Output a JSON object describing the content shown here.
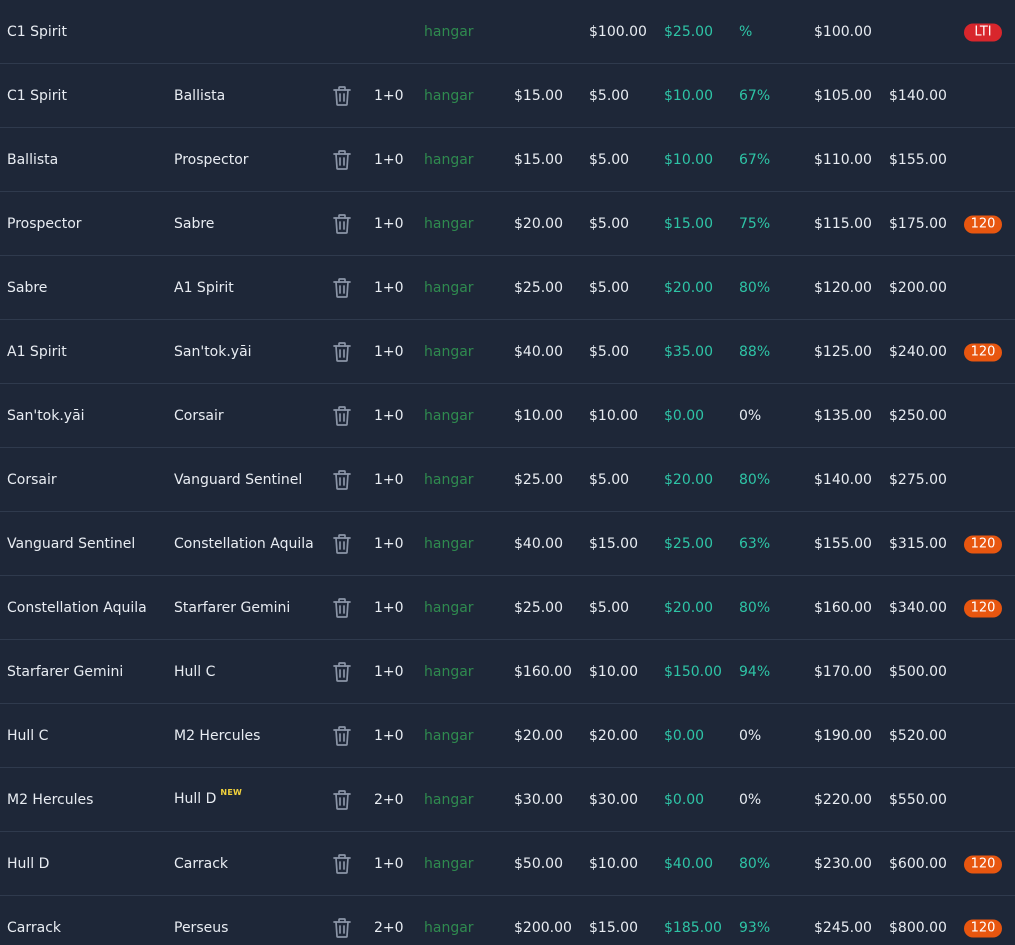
{
  "colors": {
    "background": "#1e2738",
    "divider": "#2f3a4d",
    "location_text": "#2f8a4f",
    "savings_text": "#2ec4a6",
    "badge_lti": "#d8262c",
    "badge_insurance": "#e8560f",
    "new_tag": "#f2d23c"
  },
  "icons": {
    "delete": "trash-icon"
  },
  "rows": [
    {
      "from": "C1 Spirit",
      "to": "",
      "show_delete": false,
      "qty": "",
      "location": "hangar",
      "cost": "",
      "base": "$100.00",
      "savings": "$25.00",
      "pct": "%",
      "pct_positive": true,
      "running": "$100.00",
      "total": "",
      "badge": "LTI",
      "badge_type": "lti",
      "new_tag": ""
    },
    {
      "from": "C1 Spirit",
      "to": "Ballista",
      "show_delete": true,
      "qty": "1+0",
      "location": "hangar",
      "cost": "$15.00",
      "base": "$5.00",
      "savings": "$10.00",
      "pct": "67%",
      "pct_positive": true,
      "running": "$105.00",
      "total": "$140.00",
      "badge": "",
      "badge_type": "",
      "new_tag": ""
    },
    {
      "from": "Ballista",
      "to": "Prospector",
      "show_delete": true,
      "qty": "1+0",
      "location": "hangar",
      "cost": "$15.00",
      "base": "$5.00",
      "savings": "$10.00",
      "pct": "67%",
      "pct_positive": true,
      "running": "$110.00",
      "total": "$155.00",
      "badge": "",
      "badge_type": "",
      "new_tag": ""
    },
    {
      "from": "Prospector",
      "to": "Sabre",
      "show_delete": true,
      "qty": "1+0",
      "location": "hangar",
      "cost": "$20.00",
      "base": "$5.00",
      "savings": "$15.00",
      "pct": "75%",
      "pct_positive": true,
      "running": "$115.00",
      "total": "$175.00",
      "badge": "120",
      "badge_type": "months",
      "new_tag": ""
    },
    {
      "from": "Sabre",
      "to": "A1 Spirit",
      "show_delete": true,
      "qty": "1+0",
      "location": "hangar",
      "cost": "$25.00",
      "base": "$5.00",
      "savings": "$20.00",
      "pct": "80%",
      "pct_positive": true,
      "running": "$120.00",
      "total": "$200.00",
      "badge": "",
      "badge_type": "",
      "new_tag": ""
    },
    {
      "from": "A1 Spirit",
      "to": "San'tok.yāi",
      "show_delete": true,
      "qty": "1+0",
      "location": "hangar",
      "cost": "$40.00",
      "base": "$5.00",
      "savings": "$35.00",
      "pct": "88%",
      "pct_positive": true,
      "running": "$125.00",
      "total": "$240.00",
      "badge": "120",
      "badge_type": "months",
      "new_tag": ""
    },
    {
      "from": "San'tok.yāi",
      "to": "Corsair",
      "show_delete": true,
      "qty": "1+0",
      "location": "hangar",
      "cost": "$10.00",
      "base": "$10.00",
      "savings": "$0.00",
      "pct": "0%",
      "pct_positive": false,
      "running": "$135.00",
      "total": "$250.00",
      "badge": "",
      "badge_type": "",
      "new_tag": ""
    },
    {
      "from": "Corsair",
      "to": "Vanguard Sentinel",
      "show_delete": true,
      "qty": "1+0",
      "location": "hangar",
      "cost": "$25.00",
      "base": "$5.00",
      "savings": "$20.00",
      "pct": "80%",
      "pct_positive": true,
      "running": "$140.00",
      "total": "$275.00",
      "badge": "",
      "badge_type": "",
      "new_tag": ""
    },
    {
      "from": "Vanguard Sentinel",
      "to": "Constellation Aquila",
      "show_delete": true,
      "qty": "1+0",
      "location": "hangar",
      "cost": "$40.00",
      "base": "$15.00",
      "savings": "$25.00",
      "pct": "63%",
      "pct_positive": true,
      "running": "$155.00",
      "total": "$315.00",
      "badge": "120",
      "badge_type": "months",
      "new_tag": ""
    },
    {
      "from": "Constellation Aquila",
      "to": "Starfarer Gemini",
      "show_delete": true,
      "qty": "1+0",
      "location": "hangar",
      "cost": "$25.00",
      "base": "$5.00",
      "savings": "$20.00",
      "pct": "80%",
      "pct_positive": true,
      "running": "$160.00",
      "total": "$340.00",
      "badge": "120",
      "badge_type": "months",
      "new_tag": ""
    },
    {
      "from": "Starfarer Gemini",
      "to": "Hull C",
      "show_delete": true,
      "qty": "1+0",
      "location": "hangar",
      "cost": "$160.00",
      "base": "$10.00",
      "savings": "$150.00",
      "pct": "94%",
      "pct_positive": true,
      "running": "$170.00",
      "total": "$500.00",
      "badge": "",
      "badge_type": "",
      "new_tag": ""
    },
    {
      "from": "Hull C",
      "to": "M2 Hercules",
      "show_delete": true,
      "qty": "1+0",
      "location": "hangar",
      "cost": "$20.00",
      "base": "$20.00",
      "savings": "$0.00",
      "pct": "0%",
      "pct_positive": false,
      "running": "$190.00",
      "total": "$520.00",
      "badge": "",
      "badge_type": "",
      "new_tag": ""
    },
    {
      "from": "M2 Hercules",
      "to": "Hull D",
      "show_delete": true,
      "qty": "2+0",
      "location": "hangar",
      "cost": "$30.00",
      "base": "$30.00",
      "savings": "$0.00",
      "pct": "0%",
      "pct_positive": false,
      "running": "$220.00",
      "total": "$550.00",
      "badge": "",
      "badge_type": "",
      "new_tag": "NEW"
    },
    {
      "from": "Hull D",
      "to": "Carrack",
      "show_delete": true,
      "qty": "1+0",
      "location": "hangar",
      "cost": "$50.00",
      "base": "$10.00",
      "savings": "$40.00",
      "pct": "80%",
      "pct_positive": true,
      "running": "$230.00",
      "total": "$600.00",
      "badge": "120",
      "badge_type": "months",
      "new_tag": ""
    },
    {
      "from": "Carrack",
      "to": "Perseus",
      "show_delete": true,
      "qty": "2+0",
      "location": "hangar",
      "cost": "$200.00",
      "base": "$15.00",
      "savings": "$185.00",
      "pct": "93%",
      "pct_positive": true,
      "running": "$245.00",
      "total": "$800.00",
      "badge": "120",
      "badge_type": "months",
      "new_tag": ""
    }
  ]
}
